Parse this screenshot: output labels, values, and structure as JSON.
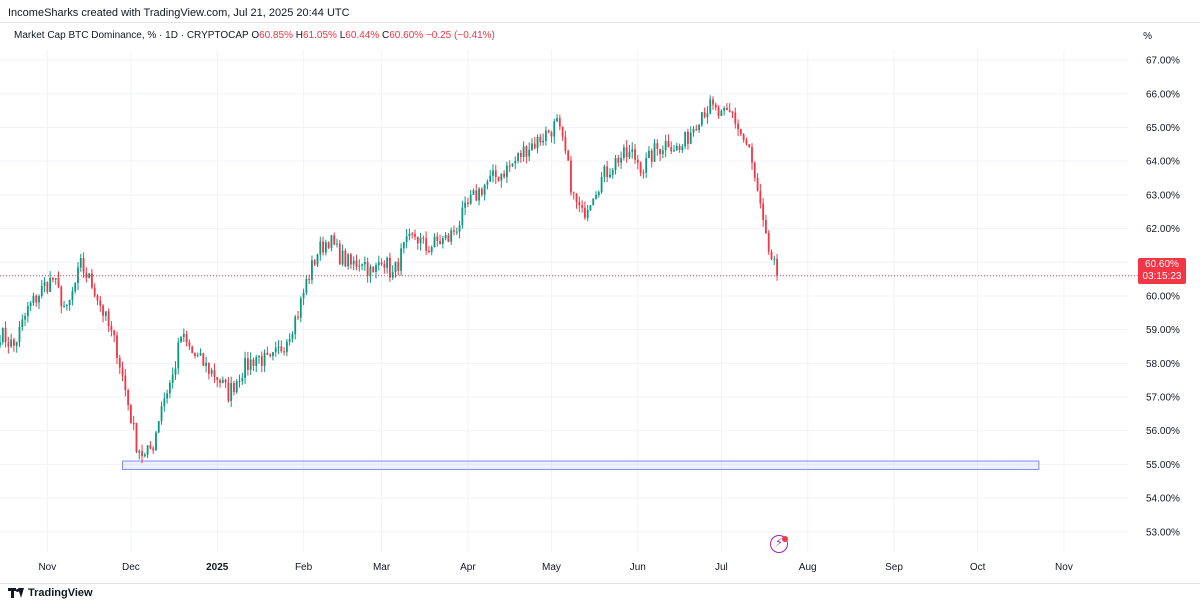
{
  "credit": "IncomeSharks created with TradingView.com, Jul 21, 2025 20:44 UTC",
  "symbol": {
    "name": "Market Cap BTC Dominance, % · 1D · CRYPTOCAP",
    "o_key": "O",
    "o_val": "60.85%",
    "h_key": "H",
    "h_val": "61.05%",
    "l_key": "L",
    "l_val": "60.44%",
    "c_key": "C",
    "c_val": "60.60%",
    "change": "−0.25 (−0.41%)"
  },
  "axis_unit": "%",
  "price_tag": {
    "price": "60.60%",
    "countdown": "03:15:23"
  },
  "branding": {
    "name": "TradingView"
  },
  "colors": {
    "up": "#089981",
    "down": "#f23645",
    "box": "#7e8ef7",
    "grid": "#f0f3fa",
    "current": "#f23645"
  },
  "chart_data": {
    "type": "candlestick",
    "y_unit": "%",
    "ylim": [
      52.4,
      67.3
    ],
    "y_ticks": [
      "53.00%",
      "54.00%",
      "55.00%",
      "56.00%",
      "57.00%",
      "58.00%",
      "59.00%",
      "60.00%",
      "61.00%",
      "62.00%",
      "63.00%",
      "64.00%",
      "65.00%",
      "66.00%",
      "67.00%"
    ],
    "y_tick_values": [
      53,
      54,
      55,
      56,
      57,
      58,
      59,
      60,
      61,
      62,
      63,
      64,
      65,
      66,
      67
    ],
    "x_ticks": [
      "Nov",
      "Dec",
      "2025",
      "Feb",
      "Mar",
      "Apr",
      "May",
      "Jun",
      "Jul",
      "Aug",
      "Sep",
      "Oct",
      "Nov"
    ],
    "x_tick_dates": [
      "2024-11-01",
      "2024-12-01",
      "2025-01-01",
      "2025-02-01",
      "2025-03-01",
      "2025-04-01",
      "2025-05-01",
      "2025-06-01",
      "2025-07-01",
      "2025-08-01",
      "2025-09-01",
      "2025-10-01",
      "2025-11-01"
    ],
    "x_range": [
      "2024-10-15",
      "2025-11-24"
    ],
    "last_price": 60.6,
    "support_zone": {
      "from": "2024-11-28",
      "to": "2025-10-23",
      "low": 54.85,
      "high": 55.1
    },
    "anchors": [
      [
        "2024-10-15",
        58.9
      ],
      [
        "2024-10-20",
        58.5
      ],
      [
        "2024-10-25",
        59.6
      ],
      [
        "2024-10-31",
        60.3
      ],
      [
        "2024-11-03",
        60.5
      ],
      [
        "2024-11-08",
        59.5
      ],
      [
        "2024-11-13",
        60.9
      ],
      [
        "2024-11-18",
        60.2
      ],
      [
        "2024-11-22",
        59.3
      ],
      [
        "2024-11-26",
        58.4
      ],
      [
        "2024-11-29",
        57.2
      ],
      [
        "2024-12-03",
        55.6
      ],
      [
        "2024-12-06",
        55.2
      ],
      [
        "2024-12-09",
        55.6
      ],
      [
        "2024-12-12",
        56.8
      ],
      [
        "2024-12-16",
        57.6
      ],
      [
        "2024-12-19",
        58.8
      ],
      [
        "2024-12-23",
        58.3
      ],
      [
        "2024-12-28",
        57.9
      ],
      [
        "2025-01-01",
        57.6
      ],
      [
        "2025-01-05",
        57.1
      ],
      [
        "2025-01-10",
        57.8
      ],
      [
        "2025-01-15",
        58.2
      ],
      [
        "2025-01-20",
        58.0
      ],
      [
        "2025-01-25",
        58.6
      ],
      [
        "2025-01-30",
        59.5
      ],
      [
        "2025-02-02",
        60.4
      ],
      [
        "2025-02-06",
        61.3
      ],
      [
        "2025-02-10",
        61.7
      ],
      [
        "2025-02-14",
        61.2
      ],
      [
        "2025-02-18",
        60.9
      ],
      [
        "2025-02-22",
        61.1
      ],
      [
        "2025-02-26",
        60.6
      ],
      [
        "2025-03-01",
        61.2
      ],
      [
        "2025-03-05",
        60.6
      ],
      [
        "2025-03-09",
        61.4
      ],
      [
        "2025-03-13",
        61.8
      ],
      [
        "2025-03-17",
        61.4
      ],
      [
        "2025-03-21",
        61.6
      ],
      [
        "2025-03-25",
        61.7
      ],
      [
        "2025-03-29",
        62.2
      ],
      [
        "2025-04-02",
        62.8
      ],
      [
        "2025-04-07",
        63.3
      ],
      [
        "2025-04-12",
        63.6
      ],
      [
        "2025-04-17",
        63.9
      ],
      [
        "2025-04-22",
        64.4
      ],
      [
        "2025-04-26",
        64.6
      ],
      [
        "2025-04-30",
        64.9
      ],
      [
        "2025-05-03",
        65.1
      ],
      [
        "2025-05-06",
        64.2
      ],
      [
        "2025-05-09",
        62.9
      ],
      [
        "2025-05-12",
        62.4
      ],
      [
        "2025-05-16",
        63.1
      ],
      [
        "2025-05-20",
        63.6
      ],
      [
        "2025-05-25",
        64.1
      ],
      [
        "2025-05-30",
        64.2
      ],
      [
        "2025-06-03",
        63.8
      ],
      [
        "2025-06-07",
        64.3
      ],
      [
        "2025-06-12",
        64.6
      ],
      [
        "2025-06-16",
        64.3
      ],
      [
        "2025-06-20",
        64.9
      ],
      [
        "2025-06-24",
        65.5
      ],
      [
        "2025-06-27",
        65.6
      ],
      [
        "2025-07-01",
        65.3
      ],
      [
        "2025-07-05",
        65.4
      ],
      [
        "2025-07-08",
        64.8
      ],
      [
        "2025-07-11",
        64.3
      ],
      [
        "2025-07-14",
        63.0
      ],
      [
        "2025-07-17",
        61.6
      ],
      [
        "2025-07-21",
        60.6
      ]
    ]
  }
}
